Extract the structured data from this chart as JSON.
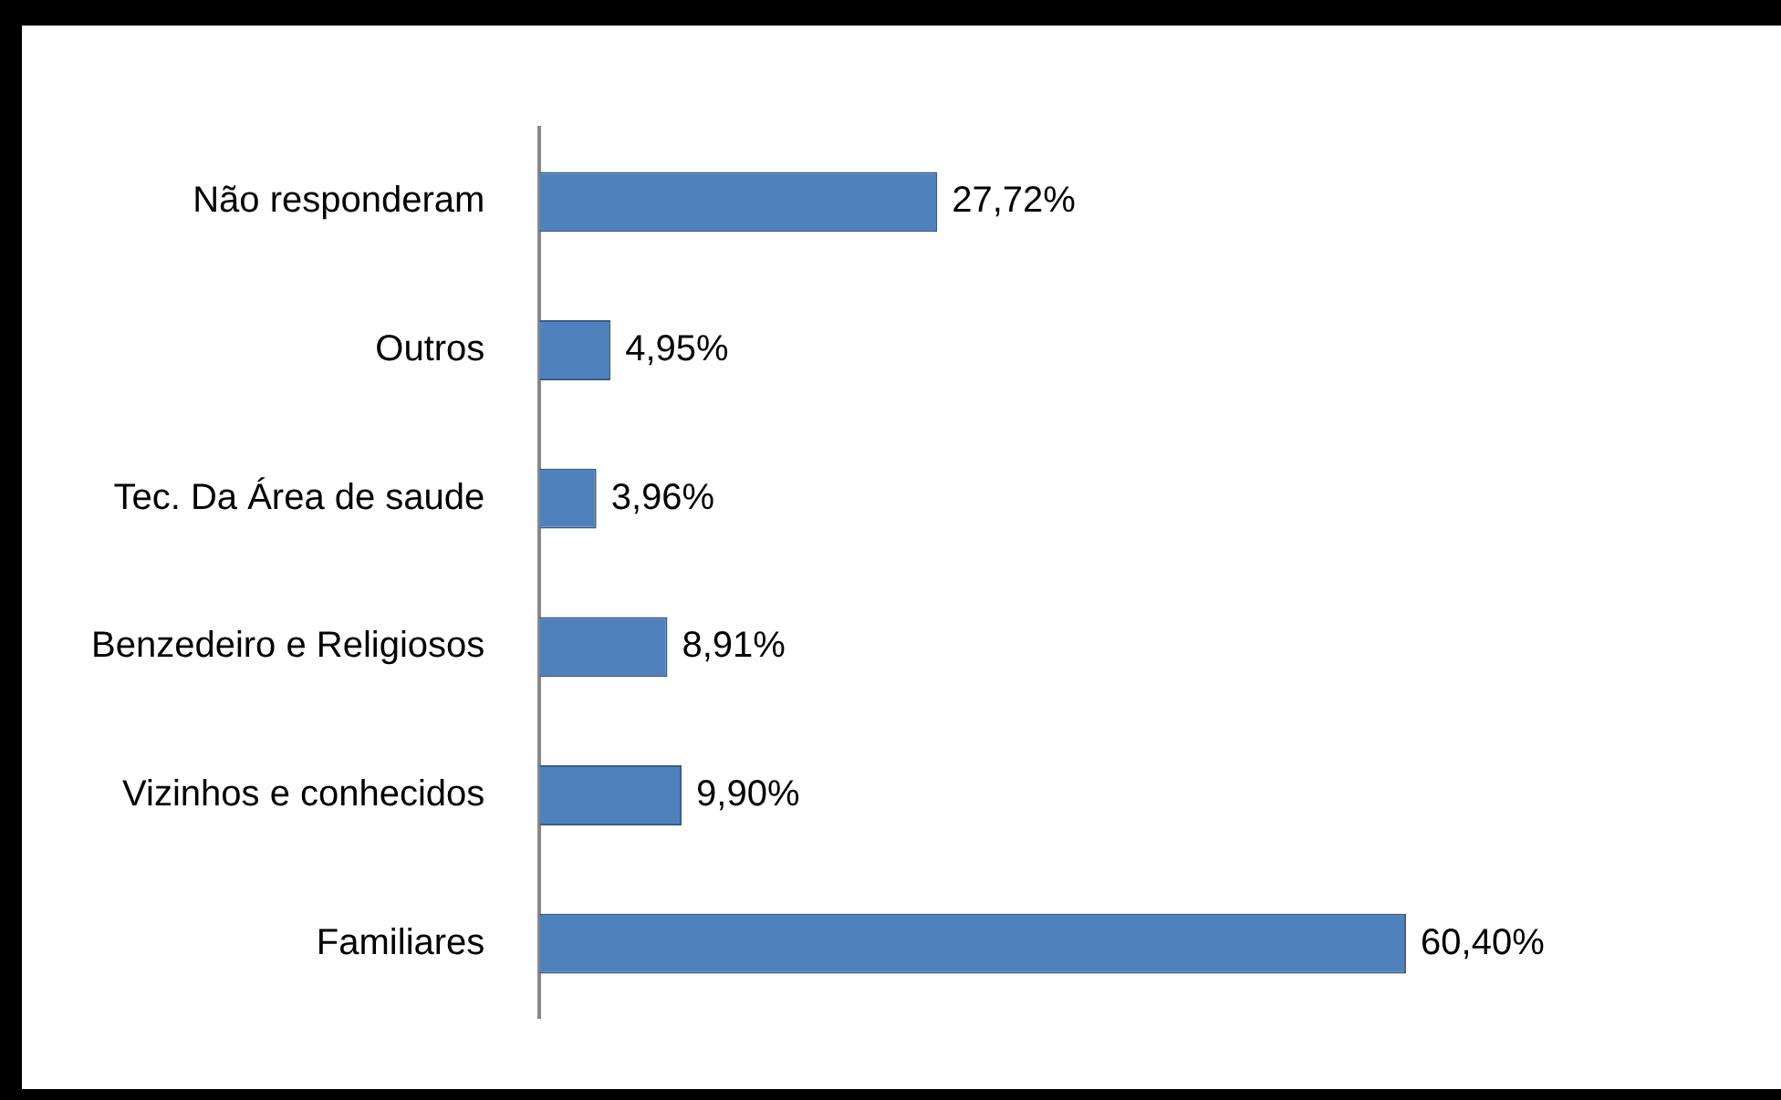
{
  "chart_data": {
    "type": "bar",
    "orientation": "horizontal",
    "categories": [
      "Não responderam",
      "Outros",
      "Tec. Da Área de saude",
      "Benzedeiro e Religiosos",
      "Vizinhos e conhecidos",
      "Familiares"
    ],
    "values": [
      27.72,
      4.95,
      3.96,
      8.91,
      9.9,
      60.4
    ],
    "value_labels": [
      "27,72%",
      "4,95%",
      "3,96%",
      "8,91%",
      "9,90%",
      "60,40%"
    ],
    "color": "#4f81bd",
    "grid": false,
    "legend": false,
    "tick_labels": "y"
  }
}
